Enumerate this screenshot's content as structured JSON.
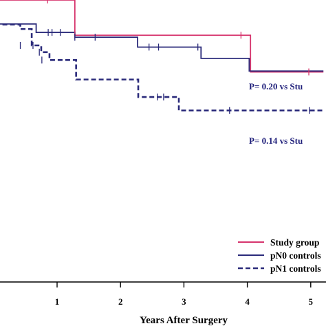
{
  "chart_data": {
    "type": "line",
    "title": "",
    "xlabel": "Years After Surgery",
    "ylabel": "",
    "xlim": [
      -0.1,
      5.2
    ],
    "ylim": [
      0.0,
      1.0
    ],
    "xticks": [
      1,
      2,
      3,
      4,
      5
    ],
    "xtick_labels": [
      "1",
      "2",
      "3",
      "4",
      "5"
    ],
    "grid": false,
    "legend_placement": "bottom-right",
    "series": [
      {
        "name": "Study group",
        "color": "#d6336c",
        "dash": "solid",
        "step_x": [
          -0.1,
          1.28,
          4.05,
          5.2
        ],
        "step_y": [
          1.0,
          0.875,
          0.745,
          0.745
        ],
        "censor_x": [
          0.85,
          1.28,
          3.9,
          4.97
        ],
        "censor_y": [
          1.0,
          0.875,
          0.875,
          0.745
        ]
      },
      {
        "name": "pN0 controls",
        "color": "#2a2a7a",
        "dash": "solid",
        "step_x": [
          -0.1,
          0.67,
          1.28,
          2.27,
          3.27,
          4.03,
          5.2
        ],
        "step_y": [
          0.915,
          0.885,
          0.868,
          0.833,
          0.793,
          0.748,
          0.748
        ],
        "censor_x": [
          0.86,
          0.92,
          1.05,
          1.28,
          1.6,
          2.45,
          2.6,
          3.22
        ],
        "censor_y": [
          0.885,
          0.885,
          0.885,
          0.868,
          0.868,
          0.833,
          0.833,
          0.833
        ]
      },
      {
        "name": "pN1 controls",
        "color": "#2a2a7a",
        "dash": "dashed",
        "step_x": [
          -0.1,
          0.42,
          0.6,
          0.75,
          0.88,
          1.3,
          2.28,
          2.92,
          5.2
        ],
        "step_y": [
          0.913,
          0.897,
          0.839,
          0.815,
          0.787,
          0.718,
          0.656,
          0.608,
          0.608
        ],
        "censor_x": [
          0.42,
          0.62,
          0.72,
          0.76,
          2.58,
          2.68,
          3.72,
          4.98
        ],
        "censor_y": [
          0.839,
          0.839,
          0.815,
          0.787,
          0.656,
          0.656,
          0.608,
          0.608
        ]
      }
    ],
    "annotations": [
      {
        "text": "P= 0.20  vs  Stu",
        "x": 3.25,
        "y": 0.715
      },
      {
        "text": "P= 0.14  vs  Stu",
        "x": 3.25,
        "y": 0.493
      }
    ]
  }
}
